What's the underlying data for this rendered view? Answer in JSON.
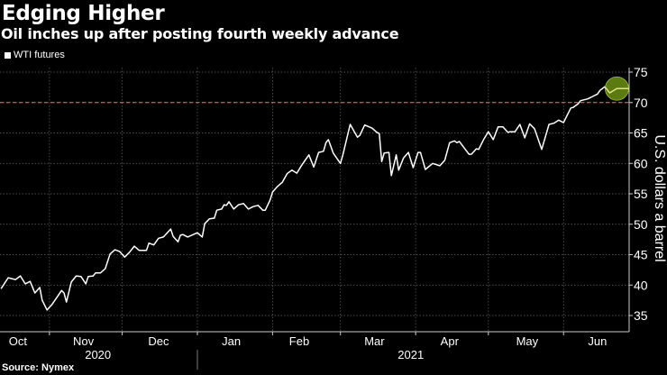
{
  "header": {
    "title": "Edging Higher",
    "subtitle": "Oil inches up after posting fourth weekly advance"
  },
  "footer": {
    "source": "Source: Nymex"
  },
  "chart_data": {
    "type": "line",
    "title": "Edging Higher",
    "subtitle": "Oil inches up after posting fourth weekly advance",
    "xlabel": "",
    "ylabel": "U.S. dollars a barrel",
    "x_units": "days since 2020-10-01",
    "ylim": [
      35,
      75
    ],
    "yticks": [
      35,
      40,
      45,
      50,
      55,
      60,
      65,
      70,
      75
    ],
    "grid": true,
    "legend": "top-left",
    "months": [
      {
        "label": "Oct",
        "day": 18
      },
      {
        "label": "Nov",
        "day": 45
      },
      {
        "label": "Dec",
        "day": 76
      },
      {
        "label": "Jan",
        "day": 106
      },
      {
        "label": "Feb",
        "day": 134
      },
      {
        "label": "Mar",
        "day": 165
      },
      {
        "label": "Apr",
        "day": 196
      },
      {
        "label": "May",
        "day": 228
      },
      {
        "label": "Jun",
        "day": 257
      }
    ],
    "month_starts": [
      31,
      61,
      92,
      123,
      151,
      182,
      212,
      243
    ],
    "years": [
      {
        "label": "2020",
        "day": 51
      },
      {
        "label": "2021",
        "day": 180
      }
    ],
    "year_divider_day": 92,
    "reference_line": {
      "value": 70,
      "color": "#d9826b"
    },
    "highlight": {
      "day": 265,
      "value": 72.3,
      "color": "#6b8f12"
    },
    "series": [
      {
        "name": "WTI futures",
        "color": "#ffffff",
        "points": [
          [
            11,
            39.4
          ],
          [
            14,
            41.2
          ],
          [
            17,
            40.9
          ],
          [
            19,
            41.5
          ],
          [
            21,
            40.2
          ],
          [
            23,
            40.6
          ],
          [
            25,
            38.7
          ],
          [
            27,
            39.6
          ],
          [
            28,
            37.5
          ],
          [
            30,
            35.9
          ],
          [
            32,
            36.8
          ],
          [
            36,
            39.1
          ],
          [
            37,
            38.7
          ],
          [
            38,
            37.2
          ],
          [
            40,
            40.5
          ],
          [
            42,
            41.5
          ],
          [
            44,
            41.4
          ],
          [
            46,
            40.2
          ],
          [
            47,
            41.4
          ],
          [
            49,
            41.5
          ],
          [
            50,
            42
          ],
          [
            52,
            42
          ],
          [
            54,
            42.7
          ],
          [
            56,
            45.1
          ],
          [
            58,
            45.8
          ],
          [
            60,
            45.5
          ],
          [
            62,
            44.6
          ],
          [
            64,
            45.4
          ],
          [
            66,
            46.4
          ],
          [
            68,
            45.7
          ],
          [
            71,
            45.7
          ],
          [
            72,
            46.9
          ],
          [
            74,
            46.6
          ],
          [
            76,
            47.7
          ],
          [
            78,
            47.9
          ],
          [
            81,
            49.2
          ],
          [
            82,
            48
          ],
          [
            84,
            47.1
          ],
          [
            85,
            48.2
          ],
          [
            86,
            48.3
          ],
          [
            88,
            47.9
          ],
          [
            92,
            48.6
          ],
          [
            94,
            47.9
          ],
          [
            95,
            50.1
          ],
          [
            97,
            50.9
          ],
          [
            99,
            51
          ],
          [
            100,
            52.3
          ],
          [
            102,
            52.5
          ],
          [
            103,
            53.2
          ],
          [
            104,
            53.1
          ],
          [
            105,
            53.7
          ],
          [
            107,
            52.5
          ],
          [
            109,
            53.2
          ],
          [
            111,
            53.4
          ],
          [
            113,
            52.5
          ],
          [
            115,
            52.9
          ],
          [
            117,
            53.1
          ],
          [
            119,
            52.3
          ],
          [
            120,
            52.3
          ],
          [
            122,
            54
          ],
          [
            123,
            55.3
          ],
          [
            125,
            56.2
          ],
          [
            127,
            56.9
          ],
          [
            129,
            58.3
          ],
          [
            131,
            58.9
          ],
          [
            133,
            58.4
          ],
          [
            135,
            59.7
          ],
          [
            138,
            61.4
          ],
          [
            140,
            59.4
          ],
          [
            142,
            61.8
          ],
          [
            144,
            62
          ],
          [
            145,
            63.4
          ],
          [
            146,
            63.9
          ],
          [
            148,
            61.7
          ],
          [
            151,
            60
          ],
          [
            152,
            61.4
          ],
          [
            155,
            66.4
          ],
          [
            158,
            64.3
          ],
          [
            159,
            64.6
          ],
          [
            161,
            66.3
          ],
          [
            164,
            65.8
          ],
          [
            166,
            65.1
          ],
          [
            167,
            64.9
          ],
          [
            168,
            60.3
          ],
          [
            169,
            61.7
          ],
          [
            171,
            61.8
          ],
          [
            172,
            58
          ],
          [
            174,
            61.4
          ],
          [
            175,
            58.9
          ],
          [
            177,
            60.9
          ],
          [
            179,
            61.8
          ],
          [
            181,
            59.3
          ],
          [
            183,
            61.8
          ],
          [
            184,
            61.8
          ],
          [
            186,
            59
          ],
          [
            189,
            60
          ],
          [
            192,
            59.6
          ],
          [
            194,
            60.5
          ],
          [
            196,
            63.4
          ],
          [
            198,
            63.7
          ],
          [
            199,
            63.4
          ],
          [
            200,
            63.6
          ],
          [
            204,
            61.5
          ],
          [
            205,
            61.5
          ],
          [
            207,
            62.4
          ],
          [
            208,
            62.3
          ],
          [
            210,
            63.9
          ],
          [
            212,
            65.2
          ],
          [
            214,
            63.9
          ],
          [
            216,
            66
          ],
          [
            218,
            66
          ],
          [
            220,
            65.1
          ],
          [
            221,
            65.2
          ],
          [
            223,
            65.2
          ],
          [
            225,
            66.4
          ],
          [
            227,
            64.2
          ],
          [
            229,
            66.5
          ],
          [
            231,
            65.7
          ],
          [
            234,
            62.3
          ],
          [
            237,
            66.4
          ],
          [
            239,
            66.6
          ],
          [
            241,
            67.1
          ],
          [
            243,
            66.7
          ],
          [
            246,
            69.1
          ],
          [
            247,
            69.2
          ],
          [
            248,
            69.5
          ],
          [
            249,
            69.8
          ],
          [
            250,
            70.3
          ],
          [
            253,
            70.6
          ],
          [
            255,
            71
          ],
          [
            257,
            71.4
          ],
          [
            258,
            72
          ],
          [
            260,
            72.6
          ],
          [
            262,
            71.6
          ],
          [
            265,
            72.3
          ],
          [
            270,
            72.3
          ]
        ]
      }
    ]
  }
}
